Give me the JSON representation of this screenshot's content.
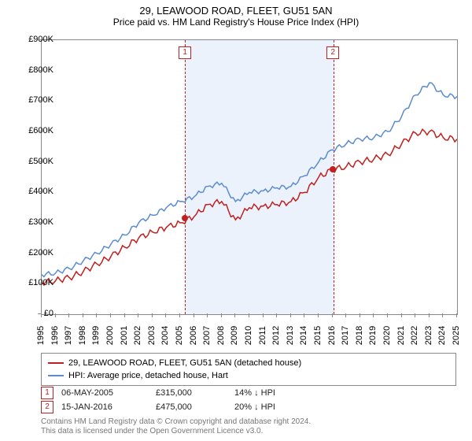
{
  "title": "29, LEAWOOD ROAD, FLEET, GU51 5AN",
  "subtitle": "Price paid vs. HM Land Registry's House Price Index (HPI)",
  "chart": {
    "type": "line",
    "xlim": [
      1995,
      2025
    ],
    "ylim": [
      0,
      900000
    ],
    "ytick_step": 100000,
    "ytick_prefix": "£",
    "ytick_suffix": "K",
    "years": [
      1995,
      1996,
      1997,
      1998,
      1999,
      2000,
      2001,
      2002,
      2003,
      2004,
      2005,
      2006,
      2007,
      2008,
      2009,
      2010,
      2011,
      2012,
      2013,
      2014,
      2015,
      2016,
      2017,
      2018,
      2019,
      2020,
      2021,
      2022,
      2023,
      2024,
      2025
    ],
    "series": [
      {
        "label": "29, LEAWOOD ROAD, FLEET, GU51 5AN (detached house)",
        "color": "#c02020",
        "line_width": 1.5,
        "data": [
          105,
          110,
          120,
          140,
          165,
          190,
          220,
          250,
          270,
          285,
          300,
          320,
          360,
          370,
          310,
          350,
          355,
          360,
          370,
          400,
          450,
          475,
          485,
          500,
          510,
          525,
          560,
          595,
          600,
          580,
          575
        ]
      },
      {
        "label": "HPI: Average price, detached house, Hart",
        "color": "#5b8bd0",
        "line_width": 1.5,
        "data": [
          130,
          135,
          150,
          175,
          200,
          230,
          260,
          300,
          325,
          350,
          370,
          385,
          420,
          430,
          370,
          400,
          405,
          415,
          420,
          455,
          500,
          540,
          560,
          575,
          580,
          600,
          650,
          720,
          760,
          720,
          715
        ]
      }
    ],
    "shaded_band": {
      "from": 2005.35,
      "to": 2016.04
    },
    "markers": [
      {
        "n": "1",
        "year": 2005.35,
        "value": 315000,
        "color": "#c02020"
      },
      {
        "n": "2",
        "year": 2016.04,
        "value": 475000,
        "color": "#c02020"
      }
    ],
    "background_color": "#ffffff",
    "axis_color": "#888888"
  },
  "transactions": [
    {
      "n": "1",
      "date": "06-MAY-2005",
      "price": "£315,000",
      "diff": "14% ↓ HPI"
    },
    {
      "n": "2",
      "date": "15-JAN-2016",
      "price": "£475,000",
      "diff": "20% ↓ HPI"
    }
  ],
  "footer": {
    "line1": "Contains HM Land Registry data © Crown copyright and database right 2024.",
    "line2": "This data is licensed under the Open Government Licence v3.0."
  },
  "y_labels": [
    "£0",
    "£100K",
    "£200K",
    "£300K",
    "£400K",
    "£500K",
    "£600K",
    "£700K",
    "£800K",
    "£900K"
  ]
}
